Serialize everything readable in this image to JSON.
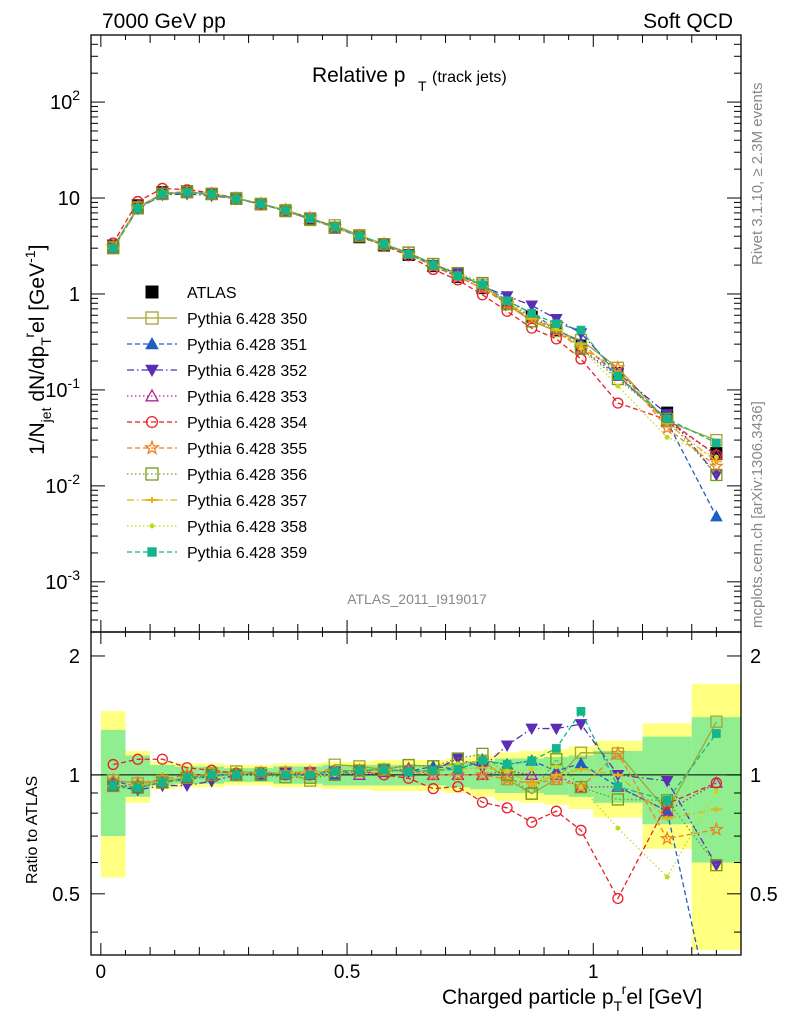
{
  "header": {
    "left": "7000 GeV pp",
    "right": "Soft QCD",
    "plot_title_main": "Relative p",
    "plot_title_sub": "T",
    "plot_title_paren": "(track jets)",
    "analysis_id": "ATLAS_2011_I919017",
    "side_top": "Rivet 3.1.10, ≥ 2.3M events",
    "side_bottom": "mcplots.cern.ch [arXiv:1306.3436]"
  },
  "chart_data": [
    {
      "type": "line",
      "title": "Relative pT (track jets)",
      "xlabel": "Charged particle p_T^rel [GeV]",
      "ylabel": "1/N_jet dN/dp_T^rel [GeV^-1]",
      "xlim": [
        -0.02,
        1.3
      ],
      "ylim": [
        0.0003,
        500
      ],
      "log_y": true,
      "grid": false,
      "legend_position": "left",
      "x_tick_labels": [
        "0",
        "0.5",
        "1"
      ],
      "y_tick_labels": [
        "10^-3",
        "10^-2",
        "10^-1",
        "1",
        "10",
        "10^2"
      ],
      "x": [
        0.025,
        0.075,
        0.125,
        0.175,
        0.225,
        0.275,
        0.325,
        0.375,
        0.425,
        0.475,
        0.525,
        0.575,
        0.625,
        0.675,
        0.725,
        0.775,
        0.825,
        0.875,
        0.925,
        0.975,
        1.05,
        1.15,
        1.25
      ],
      "bin_edges": [
        0,
        0.05,
        0.1,
        0.15,
        0.2,
        0.25,
        0.3,
        0.35,
        0.4,
        0.45,
        0.5,
        0.55,
        0.6,
        0.65,
        0.7,
        0.75,
        0.8,
        0.85,
        0.9,
        0.95,
        1.0,
        1.1,
        1.2,
        1.3
      ],
      "series": [
        {
          "name": "ATLAS",
          "color": "#000000",
          "marker": "square-filled",
          "line": "none",
          "values": [
            3.2,
            8.4,
            11.5,
            11.7,
            11.0,
            9.8,
            8.6,
            7.4,
            6.1,
            4.9,
            3.9,
            3.2,
            2.55,
            1.95,
            1.5,
            1.15,
            0.8,
            0.58,
            0.42,
            0.29,
            0.15,
            0.058,
            0.022
          ]
        },
        {
          "name": "Pythia 6.428 350",
          "color": "#a4a437",
          "marker": "square-open",
          "line": "solid",
          "values": [
            3.1,
            8.0,
            11.1,
            11.5,
            11.1,
            10.0,
            8.7,
            7.5,
            5.9,
            5.2,
            4.1,
            3.3,
            2.7,
            2.05,
            1.6,
            1.25,
            0.78,
            0.52,
            0.41,
            0.33,
            0.17,
            0.047,
            0.03
          ]
        },
        {
          "name": "Pythia 6.428 351",
          "color": "#1f5fc2",
          "marker": "triangle-up-filled",
          "line": "dashed",
          "values": [
            3.1,
            7.8,
            11.0,
            11.4,
            10.9,
            9.9,
            8.6,
            7.4,
            6.1,
            4.9,
            4.0,
            3.3,
            2.6,
            2.05,
            1.55,
            1.25,
            0.85,
            0.63,
            0.43,
            0.31,
            0.14,
            0.047,
            0.0048
          ]
        },
        {
          "name": "Pythia 6.428 352",
          "color": "#5a2eb5",
          "marker": "triangle-down-filled",
          "line": "dashdot",
          "values": [
            3.0,
            7.7,
            10.8,
            11.0,
            10.6,
            9.8,
            8.6,
            7.5,
            6.2,
            5.0,
            4.0,
            3.3,
            2.6,
            2.0,
            1.65,
            1.2,
            0.95,
            0.76,
            0.55,
            0.39,
            0.15,
            0.056,
            0.013
          ]
        },
        {
          "name": "Pythia 6.428 353",
          "color": "#b0278f",
          "marker": "triangle-up-open",
          "line": "dotted",
          "values": [
            3.0,
            7.9,
            11.0,
            11.5,
            10.9,
            9.8,
            8.7,
            7.5,
            6.1,
            5.0,
            3.9,
            3.25,
            2.65,
            1.95,
            1.5,
            1.15,
            0.82,
            0.58,
            0.42,
            0.27,
            0.14,
            0.047,
            0.021
          ]
        },
        {
          "name": "Pythia 6.428 354",
          "color": "#e4222a",
          "marker": "circle-open",
          "line": "dashed",
          "values": [
            3.4,
            9.2,
            12.6,
            12.2,
            11.3,
            9.9,
            8.7,
            7.4,
            6.2,
            5.0,
            4.0,
            3.2,
            2.5,
            1.8,
            1.4,
            0.98,
            0.66,
            0.44,
            0.34,
            0.21,
            0.073,
            0.049,
            0.021
          ]
        },
        {
          "name": "Pythia 6.428 355",
          "color": "#f08020",
          "marker": "star-open",
          "line": "dashed",
          "values": [
            3.1,
            8.0,
            11.2,
            11.7,
            11.0,
            9.8,
            8.7,
            7.5,
            6.2,
            5.0,
            4.0,
            3.3,
            2.6,
            1.95,
            1.5,
            1.15,
            0.78,
            0.55,
            0.41,
            0.27,
            0.17,
            0.04,
            0.016
          ]
        },
        {
          "name": "Pythia 6.428 356",
          "color": "#789a1a",
          "marker": "square-open",
          "line": "dotted",
          "values": [
            3.0,
            7.8,
            11.0,
            11.5,
            11.0,
            9.8,
            8.6,
            7.3,
            6.0,
            4.9,
            4.0,
            3.3,
            2.7,
            2.05,
            1.65,
            1.3,
            0.8,
            0.52,
            0.46,
            0.27,
            0.13,
            0.05,
            0.013
          ]
        },
        {
          "name": "Pythia 6.428 357",
          "color": "#e2b512",
          "marker": "tick",
          "line": "dashdot",
          "values": [
            3.0,
            7.9,
            11.0,
            11.5,
            11.0,
            9.9,
            8.7,
            7.5,
            6.2,
            5.0,
            4.0,
            3.3,
            2.6,
            2.0,
            1.55,
            1.2,
            0.82,
            0.55,
            0.42,
            0.3,
            0.15,
            0.045,
            0.018
          ]
        },
        {
          "name": "Pythia 6.428 358",
          "color": "#c3d91d",
          "marker": "dot",
          "line": "dotted",
          "values": [
            3.0,
            7.8,
            11.0,
            11.4,
            10.9,
            9.8,
            8.6,
            7.5,
            6.1,
            4.9,
            4.0,
            3.25,
            2.6,
            2.0,
            1.6,
            1.25,
            0.82,
            0.6,
            0.44,
            0.27,
            0.11,
            0.032,
            0.02
          ]
        },
        {
          "name": "Pythia 6.428 359",
          "color": "#14b58a",
          "marker": "square-filled-small",
          "line": "dashed",
          "values": [
            3.0,
            7.8,
            11.0,
            11.5,
            11.0,
            9.8,
            8.7,
            7.4,
            6.1,
            5.0,
            4.0,
            3.3,
            2.6,
            2.0,
            1.55,
            1.25,
            0.85,
            0.63,
            0.49,
            0.42,
            0.14,
            0.05,
            0.028
          ]
        }
      ]
    },
    {
      "type": "line",
      "title": "",
      "xlabel": "Charged particle p_T^rel [GeV]",
      "ylabel": "Ratio to ATLAS",
      "xlim": [
        -0.02,
        1.3
      ],
      "ylim": [
        0.35,
        2.3
      ],
      "log_y": true,
      "grid": false,
      "x_tick_labels": [
        "0",
        "0.5",
        "1"
      ],
      "y_tick_labels": [
        "0.5",
        "1",
        "2"
      ],
      "band_inner_green": [
        0.3,
        0.12,
        0.06,
        0.05,
        0.05,
        0.04,
        0.04,
        0.05,
        0.05,
        0.06,
        0.06,
        0.06,
        0.06,
        0.06,
        0.07,
        0.08,
        0.1,
        0.1,
        0.11,
        0.12,
        0.15,
        0.25,
        0.4
      ],
      "band_outer_yellow": [
        0.45,
        0.15,
        0.08,
        0.07,
        0.07,
        0.06,
        0.06,
        0.07,
        0.07,
        0.08,
        0.08,
        0.09,
        0.09,
        0.09,
        0.1,
        0.12,
        0.14,
        0.15,
        0.16,
        0.18,
        0.22,
        0.35,
        0.7
      ]
    }
  ]
}
